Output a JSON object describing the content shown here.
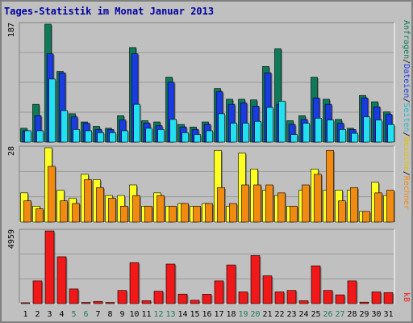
{
  "title": "Tages-Statistik im Monat Januar 2013",
  "colors": {
    "background": "#c0c0c0",
    "grid": "#999999",
    "anfragen": "#0d7a5a",
    "dateien": "#1a3be0",
    "seiten": "#22e0f0",
    "besuche": "#ffff22",
    "rechner": "#f08a10",
    "kb": "#f01818",
    "title": "#0000a0",
    "weekend_label": "#1d7a5a"
  },
  "chart_data": [
    {
      "type": "bar",
      "panel": "top",
      "ymax_label": "187",
      "ymax": 187,
      "categories": [
        "1",
        "2",
        "3",
        "4",
        "5",
        "6",
        "7",
        "8",
        "9",
        "10",
        "11",
        "12",
        "13",
        "14",
        "15",
        "16",
        "17",
        "18",
        "19",
        "20",
        "21",
        "22",
        "23",
        "24",
        "25",
        "26",
        "27",
        "28",
        "29",
        "30",
        "31"
      ],
      "weekend_days": [
        "5",
        "6",
        "12",
        "13",
        "19",
        "20",
        "26",
        "27"
      ],
      "series": [
        {
          "name": "Anfragen",
          "values": [
            22,
            60,
            187,
            112,
            45,
            32,
            25,
            22,
            42,
            150,
            34,
            32,
            103,
            28,
            24,
            32,
            85,
            68,
            68,
            67,
            120,
            148,
            34,
            42,
            103,
            68,
            36,
            22,
            74,
            64,
            48
          ]
        },
        {
          "name": "Dateien",
          "values": [
            18,
            42,
            140,
            110,
            40,
            30,
            20,
            20,
            35,
            140,
            30,
            26,
            95,
            24,
            20,
            28,
            80,
            60,
            62,
            57,
            110,
            60,
            28,
            36,
            70,
            60,
            30,
            20,
            70,
            56,
            44
          ]
        },
        {
          "name": "Seiten",
          "values": [
            18,
            18,
            100,
            50,
            20,
            18,
            15,
            15,
            18,
            60,
            22,
            20,
            36,
            15,
            12,
            18,
            45,
            30,
            30,
            33,
            55,
            65,
            12,
            30,
            38,
            35,
            20,
            14,
            40,
            35,
            28
          ]
        }
      ],
      "legend": [
        "Anfragen",
        "Dateien",
        "Seiten"
      ]
    },
    {
      "type": "bar",
      "panel": "middle",
      "ymax_label": "28",
      "ymax": 28,
      "categories": [
        "1",
        "2",
        "3",
        "4",
        "5",
        "6",
        "7",
        "8",
        "9",
        "10",
        "11",
        "12",
        "13",
        "14",
        "15",
        "16",
        "17",
        "18",
        "19",
        "20",
        "21",
        "22",
        "23",
        "24",
        "25",
        "26",
        "27",
        "28",
        "29",
        "30",
        "31"
      ],
      "series": [
        {
          "name": "Besuche",
          "values": [
            11,
            6,
            28,
            12,
            9,
            18,
            16,
            10,
            10,
            14,
            6,
            11,
            6,
            7,
            6,
            7,
            27,
            6,
            26,
            20,
            12,
            10,
            6,
            12,
            20,
            12,
            12,
            12,
            4,
            15,
            10
          ]
        },
        {
          "name": "Rechner",
          "values": [
            8,
            5,
            21,
            8,
            7,
            16,
            13,
            9,
            6,
            10,
            6,
            10,
            6,
            7,
            6,
            7,
            13,
            7,
            14,
            14,
            14,
            11,
            6,
            14,
            18,
            27,
            8,
            13,
            4,
            11,
            12
          ]
        }
      ],
      "legend": [
        "Besuche",
        "Rechner"
      ]
    },
    {
      "type": "bar",
      "panel": "bottom",
      "ymax_label": "4959",
      "ymax": 4959,
      "categories": [
        "1",
        "2",
        "3",
        "4",
        "5",
        "6",
        "7",
        "8",
        "9",
        "10",
        "11",
        "12",
        "13",
        "14",
        "15",
        "16",
        "17",
        "18",
        "19",
        "20",
        "21",
        "22",
        "23",
        "24",
        "25",
        "26",
        "27",
        "28",
        "29",
        "30",
        "31"
      ],
      "series": [
        {
          "name": "kB",
          "values": [
            60,
            1550,
            4959,
            3200,
            1000,
            80,
            150,
            80,
            900,
            2800,
            200,
            850,
            2700,
            650,
            230,
            640,
            1550,
            2640,
            800,
            3280,
            1900,
            800,
            900,
            200,
            2580,
            900,
            600,
            1550,
            100,
            800,
            750
          ]
        }
      ],
      "legend": [
        "kB"
      ]
    }
  ],
  "legend_labels": {
    "anfragen": "Anfragen",
    "sep1": "/",
    "dateien": "Dateien",
    "sep2": "/",
    "seiten": "Seiten",
    "sep3": "/",
    "besuche": "Besuche",
    "sep4": "/",
    "rechner": "Rechner",
    "kb": "kB"
  }
}
